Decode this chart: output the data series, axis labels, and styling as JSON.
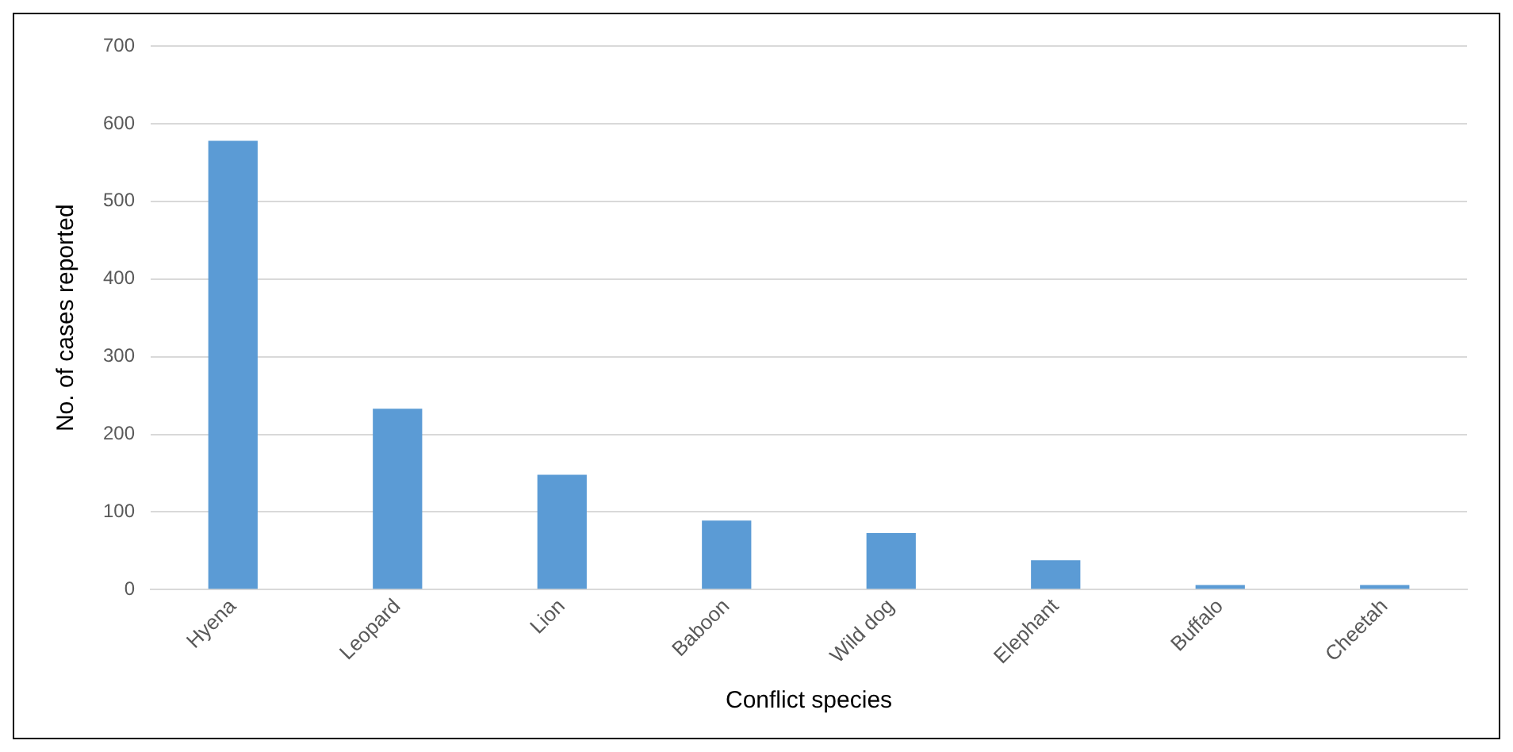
{
  "chart_data": {
    "type": "bar",
    "xlabel": "Conflict species",
    "ylabel": "No. of cases reported",
    "categories": [
      "Hyena",
      "Leopard",
      "Lion",
      "Baboon",
      "Wild dog",
      "Elephant",
      "Buffalo",
      "Cheetah"
    ],
    "values": [
      578,
      233,
      148,
      89,
      73,
      38,
      6,
      6
    ],
    "color": "#5b9bd5",
    "ylim": [
      0,
      700
    ],
    "yticks": [
      0,
      100,
      200,
      300,
      400,
      500,
      600,
      700
    ],
    "grid": "y",
    "legend": false
  }
}
